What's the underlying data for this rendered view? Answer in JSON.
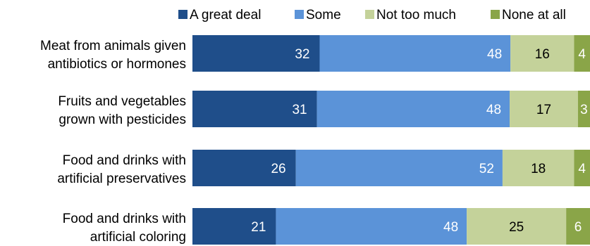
{
  "chart_data": {
    "type": "bar",
    "orientation": "horizontal",
    "stacked": true,
    "legend_position": "top-right",
    "grid": false,
    "categories": [
      [
        "Meat from animals given",
        "antibiotics or hormones"
      ],
      [
        "Fruits and vegetables",
        "grown with pesticides"
      ],
      [
        "Food and drinks with",
        "artificial preservatives"
      ],
      [
        "Food and drinks with",
        "artificial coloring"
      ]
    ],
    "series": [
      {
        "name": "A great deal",
        "color": "#1f4e8a",
        "label_color": "#ffffff",
        "values": [
          32,
          31,
          26,
          21
        ]
      },
      {
        "name": "Some",
        "color": "#5b93d8",
        "label_color": "#ffffff",
        "values": [
          48,
          48,
          52,
          48
        ]
      },
      {
        "name": "Not too much",
        "color": "#c4d29a",
        "label_color": "#000000",
        "values": [
          16,
          17,
          18,
          25
        ]
      },
      {
        "name": "None at all",
        "color": "#8aa548",
        "label_color": "#ffffff",
        "values": [
          4,
          3,
          4,
          6
        ]
      }
    ]
  }
}
